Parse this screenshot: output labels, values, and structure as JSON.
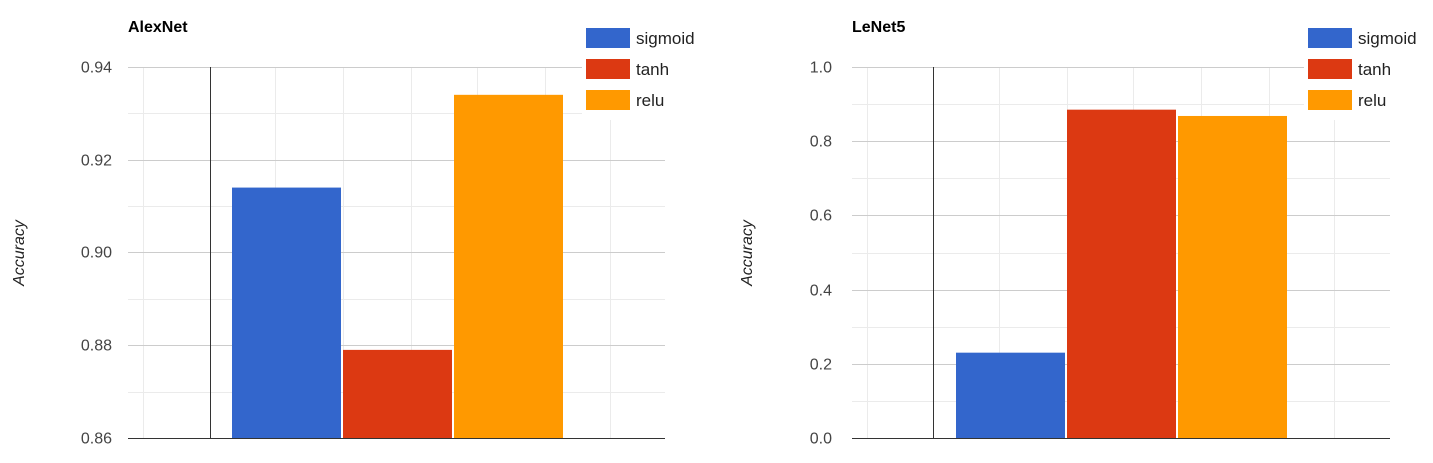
{
  "chart_data": [
    {
      "type": "bar",
      "title": "AlexNet",
      "ylabel": "Accuracy",
      "xlabel": "",
      "ylim": [
        0.86,
        0.94
      ],
      "yticks": [
        "0.86",
        "0.88",
        "0.90",
        "0.92",
        "0.94"
      ],
      "tickValues": [
        0.86,
        0.88,
        0.9,
        0.92,
        0.94
      ],
      "grid": true,
      "legend_position": "top-right",
      "series": [
        {
          "name": "sigmoid",
          "color": "#3366cc",
          "values": [
            0.914
          ]
        },
        {
          "name": "tanh",
          "color": "#dc3912",
          "values": [
            0.879
          ]
        },
        {
          "name": "relu",
          "color": "#ff9900",
          "values": [
            0.934
          ]
        }
      ]
    },
    {
      "type": "bar",
      "title": "LeNet5",
      "ylabel": "Accuracy",
      "xlabel": "",
      "ylim": [
        0.0,
        1.0
      ],
      "yticks": [
        "0.0",
        "0.2",
        "0.4",
        "0.6",
        "0.8",
        "1.0"
      ],
      "tickValues": [
        0.0,
        0.2,
        0.4,
        0.6,
        0.8,
        1.0
      ],
      "grid": true,
      "legend_position": "top-right",
      "series": [
        {
          "name": "sigmoid",
          "color": "#3366cc",
          "values": [
            0.23
          ]
        },
        {
          "name": "tanh",
          "color": "#dc3912",
          "values": [
            0.885
          ]
        },
        {
          "name": "relu",
          "color": "#ff9900",
          "values": [
            0.868
          ]
        }
      ]
    }
  ]
}
